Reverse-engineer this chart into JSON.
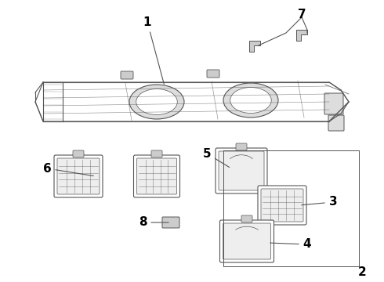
{
  "title": "",
  "background_color": "#ffffff",
  "line_color": "#555555",
  "text_color": "#000000",
  "figsize": [
    4.9,
    3.6
  ],
  "dpi": 100
}
